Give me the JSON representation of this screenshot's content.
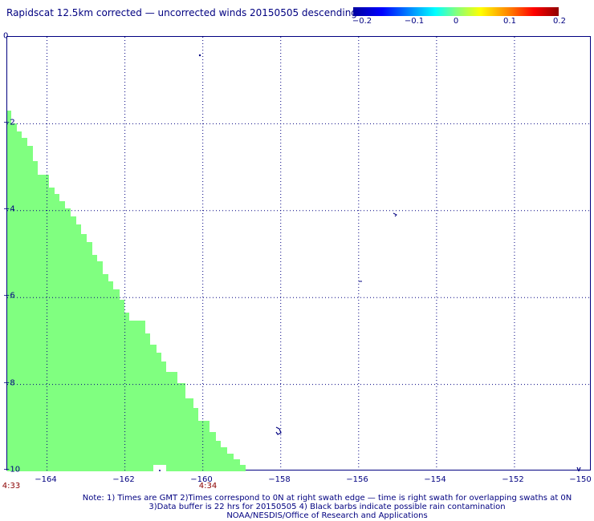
{
  "title": "Rapidscat 12.5km corrected — uncorrected winds 20150505 descending",
  "colorbar": {
    "ticks": [
      "−0.2",
      "−0.1",
      "0",
      "0.1",
      "0.2"
    ],
    "min": -0.2,
    "max": 0.2
  },
  "map": {
    "lon_range": [
      -165,
      -150
    ],
    "lat_range": [
      -10,
      0
    ],
    "x_tick_labels": [
      "−164",
      "−162",
      "−160",
      "−158",
      "−156",
      "−154",
      "−152",
      "−150"
    ],
    "y_tick_labels": [
      "0",
      "−2",
      "−4",
      "−6",
      "−8",
      "−10"
    ],
    "swath_fill_color": "#80ff80",
    "time_labels": [
      "4:33",
      "4:34"
    ]
  },
  "notes": {
    "line1": "Note: 1) Times are GMT 2)Times correspond to 0N at right swath edge — time is right swath for overlapping swaths at 0N",
    "line2": "3)Data buffer is 22 hrs for 20150505 4) Black barbs indicate possible rain contamination",
    "line3": "NOAA/NESDIS/Office of Research and Applications"
  }
}
